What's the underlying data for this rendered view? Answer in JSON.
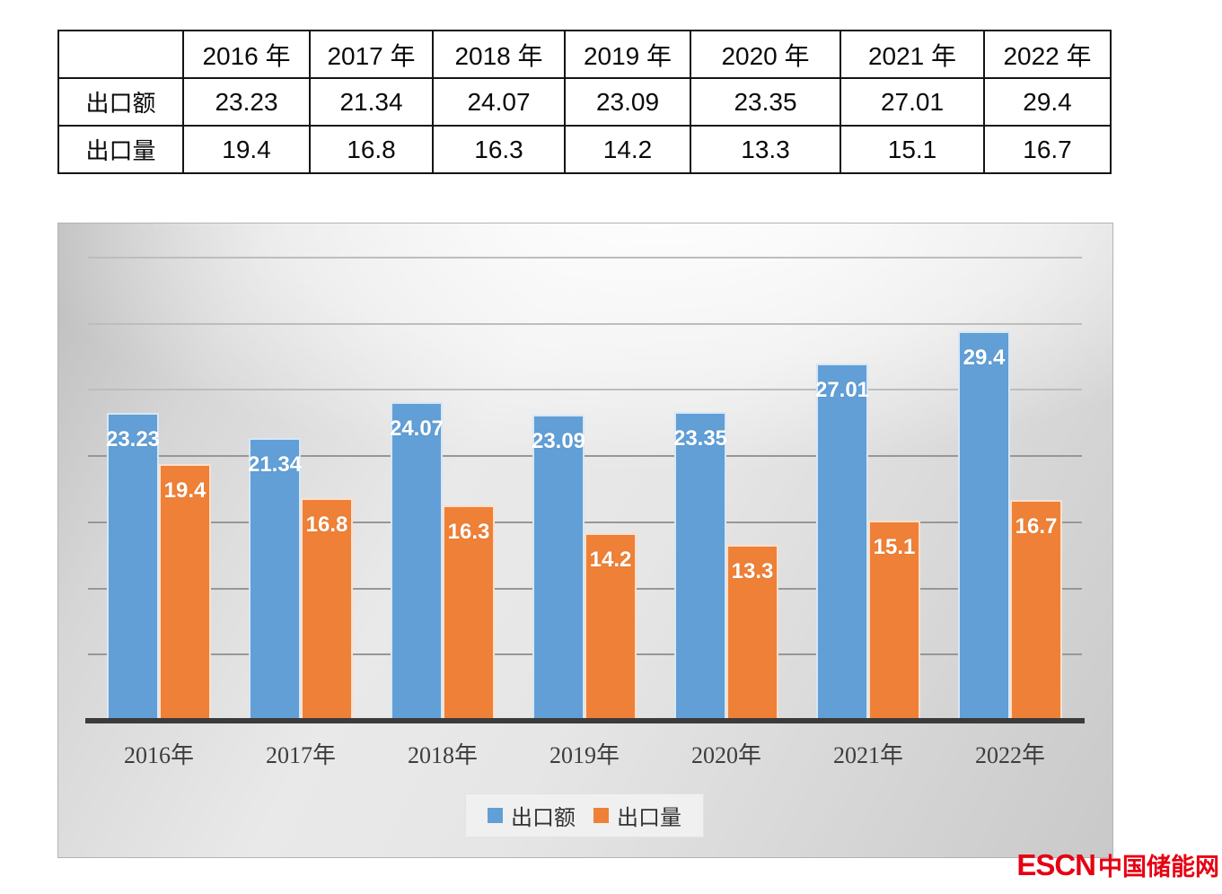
{
  "table": {
    "col_headers": [
      "",
      "2016 年",
      "2017 年",
      "2018 年",
      "2019 年",
      "2020 年",
      "2021 年",
      "2022 年"
    ],
    "rows": [
      {
        "label": "出口额",
        "values": [
          "23.23",
          "21.34",
          "24.07",
          "23.09",
          "23.35",
          "27.01",
          "29.4"
        ]
      },
      {
        "label": "出口量",
        "values": [
          "19.4",
          "16.8",
          "16.3",
          "14.2",
          "13.3",
          "15.1",
          "16.7"
        ]
      }
    ]
  },
  "chart_data": {
    "type": "bar",
    "title": "",
    "xlabel": "",
    "ylabel": "",
    "categories": [
      "2016年",
      "2017年",
      "2018年",
      "2019年",
      "2020年",
      "2021年",
      "2022年"
    ],
    "series": [
      {
        "name": "出口额",
        "color": "#619fd6",
        "values": [
          23.23,
          21.34,
          24.07,
          23.09,
          23.35,
          27.01,
          29.4
        ],
        "labels": [
          "23.23",
          "21.34",
          "24.07",
          "23.09",
          "23.35",
          "27.01",
          "29.4"
        ]
      },
      {
        "name": "出口量",
        "color": "#ee8137",
        "values": [
          19.4,
          16.8,
          16.3,
          14.2,
          13.3,
          15.1,
          16.7
        ],
        "labels": [
          "19.4",
          "16.8",
          "16.3",
          "14.2",
          "13.3",
          "15.1",
          "16.7"
        ]
      }
    ],
    "ylim": [
      0,
      35
    ],
    "gridline_step": 5,
    "grid": true,
    "legend_position": "bottom",
    "value_label_color": "#ffffff",
    "axis_line_color": "#3b3b3b"
  },
  "watermark": {
    "latin": "ESCN",
    "cjk": "中国储能网",
    "color": "#e60012"
  }
}
